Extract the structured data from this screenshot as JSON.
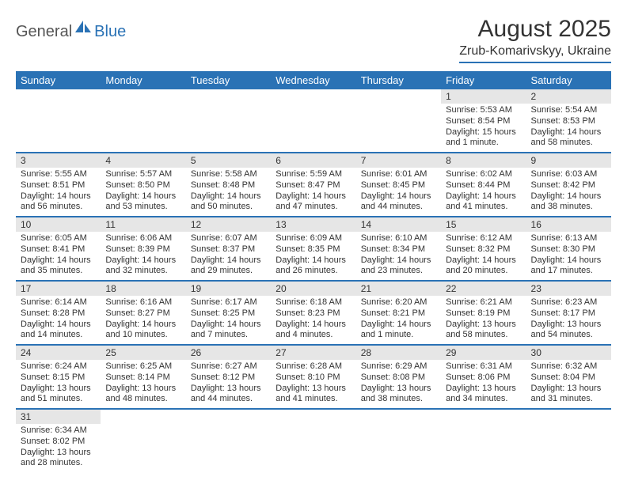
{
  "logo": {
    "part1": "General",
    "part2": "Blue"
  },
  "title": "August 2025",
  "location": "Zrub-Komarivskyy, Ukraine",
  "colors": {
    "accent": "#2a72b5",
    "header_bg": "#2a72b5",
    "header_text": "#ffffff",
    "daynum_bg": "#e6e6e6",
    "text": "#333333"
  },
  "weekdays": [
    "Sunday",
    "Monday",
    "Tuesday",
    "Wednesday",
    "Thursday",
    "Friday",
    "Saturday"
  ],
  "weeks": [
    [
      {
        "n": "",
        "sr": "",
        "ss": "",
        "dl": ""
      },
      {
        "n": "",
        "sr": "",
        "ss": "",
        "dl": ""
      },
      {
        "n": "",
        "sr": "",
        "ss": "",
        "dl": ""
      },
      {
        "n": "",
        "sr": "",
        "ss": "",
        "dl": ""
      },
      {
        "n": "",
        "sr": "",
        "ss": "",
        "dl": ""
      },
      {
        "n": "1",
        "sr": "Sunrise: 5:53 AM",
        "ss": "Sunset: 8:54 PM",
        "dl": "Daylight: 15 hours and 1 minute."
      },
      {
        "n": "2",
        "sr": "Sunrise: 5:54 AM",
        "ss": "Sunset: 8:53 PM",
        "dl": "Daylight: 14 hours and 58 minutes."
      }
    ],
    [
      {
        "n": "3",
        "sr": "Sunrise: 5:55 AM",
        "ss": "Sunset: 8:51 PM",
        "dl": "Daylight: 14 hours and 56 minutes."
      },
      {
        "n": "4",
        "sr": "Sunrise: 5:57 AM",
        "ss": "Sunset: 8:50 PM",
        "dl": "Daylight: 14 hours and 53 minutes."
      },
      {
        "n": "5",
        "sr": "Sunrise: 5:58 AM",
        "ss": "Sunset: 8:48 PM",
        "dl": "Daylight: 14 hours and 50 minutes."
      },
      {
        "n": "6",
        "sr": "Sunrise: 5:59 AM",
        "ss": "Sunset: 8:47 PM",
        "dl": "Daylight: 14 hours and 47 minutes."
      },
      {
        "n": "7",
        "sr": "Sunrise: 6:01 AM",
        "ss": "Sunset: 8:45 PM",
        "dl": "Daylight: 14 hours and 44 minutes."
      },
      {
        "n": "8",
        "sr": "Sunrise: 6:02 AM",
        "ss": "Sunset: 8:44 PM",
        "dl": "Daylight: 14 hours and 41 minutes."
      },
      {
        "n": "9",
        "sr": "Sunrise: 6:03 AM",
        "ss": "Sunset: 8:42 PM",
        "dl": "Daylight: 14 hours and 38 minutes."
      }
    ],
    [
      {
        "n": "10",
        "sr": "Sunrise: 6:05 AM",
        "ss": "Sunset: 8:41 PM",
        "dl": "Daylight: 14 hours and 35 minutes."
      },
      {
        "n": "11",
        "sr": "Sunrise: 6:06 AM",
        "ss": "Sunset: 8:39 PM",
        "dl": "Daylight: 14 hours and 32 minutes."
      },
      {
        "n": "12",
        "sr": "Sunrise: 6:07 AM",
        "ss": "Sunset: 8:37 PM",
        "dl": "Daylight: 14 hours and 29 minutes."
      },
      {
        "n": "13",
        "sr": "Sunrise: 6:09 AM",
        "ss": "Sunset: 8:35 PM",
        "dl": "Daylight: 14 hours and 26 minutes."
      },
      {
        "n": "14",
        "sr": "Sunrise: 6:10 AM",
        "ss": "Sunset: 8:34 PM",
        "dl": "Daylight: 14 hours and 23 minutes."
      },
      {
        "n": "15",
        "sr": "Sunrise: 6:12 AM",
        "ss": "Sunset: 8:32 PM",
        "dl": "Daylight: 14 hours and 20 minutes."
      },
      {
        "n": "16",
        "sr": "Sunrise: 6:13 AM",
        "ss": "Sunset: 8:30 PM",
        "dl": "Daylight: 14 hours and 17 minutes."
      }
    ],
    [
      {
        "n": "17",
        "sr": "Sunrise: 6:14 AM",
        "ss": "Sunset: 8:28 PM",
        "dl": "Daylight: 14 hours and 14 minutes."
      },
      {
        "n": "18",
        "sr": "Sunrise: 6:16 AM",
        "ss": "Sunset: 8:27 PM",
        "dl": "Daylight: 14 hours and 10 minutes."
      },
      {
        "n": "19",
        "sr": "Sunrise: 6:17 AM",
        "ss": "Sunset: 8:25 PM",
        "dl": "Daylight: 14 hours and 7 minutes."
      },
      {
        "n": "20",
        "sr": "Sunrise: 6:18 AM",
        "ss": "Sunset: 8:23 PM",
        "dl": "Daylight: 14 hours and 4 minutes."
      },
      {
        "n": "21",
        "sr": "Sunrise: 6:20 AM",
        "ss": "Sunset: 8:21 PM",
        "dl": "Daylight: 14 hours and 1 minute."
      },
      {
        "n": "22",
        "sr": "Sunrise: 6:21 AM",
        "ss": "Sunset: 8:19 PM",
        "dl": "Daylight: 13 hours and 58 minutes."
      },
      {
        "n": "23",
        "sr": "Sunrise: 6:23 AM",
        "ss": "Sunset: 8:17 PM",
        "dl": "Daylight: 13 hours and 54 minutes."
      }
    ],
    [
      {
        "n": "24",
        "sr": "Sunrise: 6:24 AM",
        "ss": "Sunset: 8:15 PM",
        "dl": "Daylight: 13 hours and 51 minutes."
      },
      {
        "n": "25",
        "sr": "Sunrise: 6:25 AM",
        "ss": "Sunset: 8:14 PM",
        "dl": "Daylight: 13 hours and 48 minutes."
      },
      {
        "n": "26",
        "sr": "Sunrise: 6:27 AM",
        "ss": "Sunset: 8:12 PM",
        "dl": "Daylight: 13 hours and 44 minutes."
      },
      {
        "n": "27",
        "sr": "Sunrise: 6:28 AM",
        "ss": "Sunset: 8:10 PM",
        "dl": "Daylight: 13 hours and 41 minutes."
      },
      {
        "n": "28",
        "sr": "Sunrise: 6:29 AM",
        "ss": "Sunset: 8:08 PM",
        "dl": "Daylight: 13 hours and 38 minutes."
      },
      {
        "n": "29",
        "sr": "Sunrise: 6:31 AM",
        "ss": "Sunset: 8:06 PM",
        "dl": "Daylight: 13 hours and 34 minutes."
      },
      {
        "n": "30",
        "sr": "Sunrise: 6:32 AM",
        "ss": "Sunset: 8:04 PM",
        "dl": "Daylight: 13 hours and 31 minutes."
      }
    ],
    [
      {
        "n": "31",
        "sr": "Sunrise: 6:34 AM",
        "ss": "Sunset: 8:02 PM",
        "dl": "Daylight: 13 hours and 28 minutes."
      },
      {
        "n": "",
        "sr": "",
        "ss": "",
        "dl": ""
      },
      {
        "n": "",
        "sr": "",
        "ss": "",
        "dl": ""
      },
      {
        "n": "",
        "sr": "",
        "ss": "",
        "dl": ""
      },
      {
        "n": "",
        "sr": "",
        "ss": "",
        "dl": ""
      },
      {
        "n": "",
        "sr": "",
        "ss": "",
        "dl": ""
      },
      {
        "n": "",
        "sr": "",
        "ss": "",
        "dl": ""
      }
    ]
  ]
}
